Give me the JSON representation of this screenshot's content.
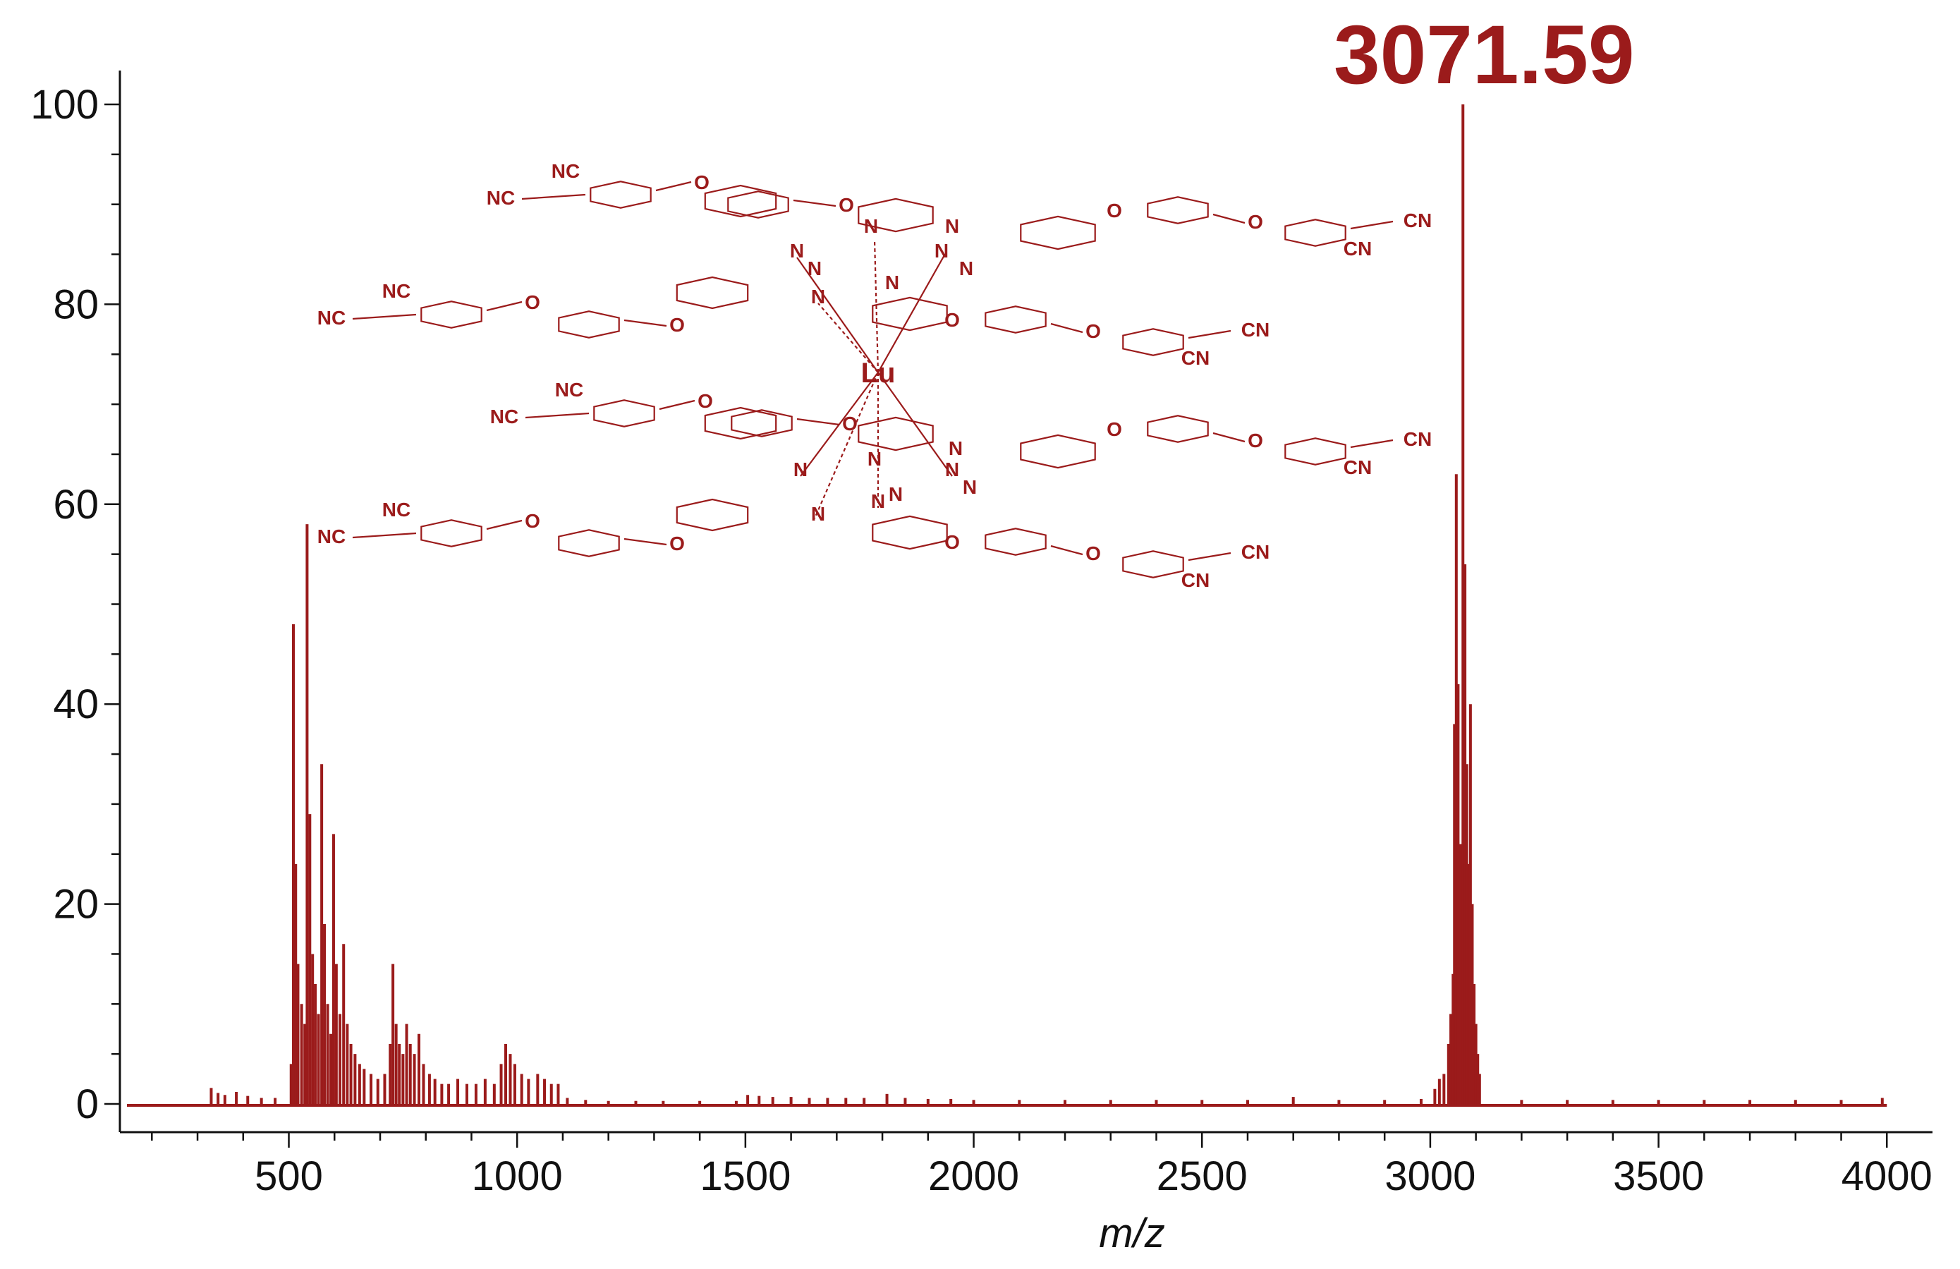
{
  "chart_data": {
    "type": "bar",
    "title": "",
    "xlabel": "m/z",
    "ylabel": "",
    "xlim": [
      130,
      4100
    ],
    "ylim": [
      0,
      100
    ],
    "xticks": [
      500,
      1000,
      1500,
      2000,
      2500,
      3000,
      3500,
      4000
    ],
    "ytick_values": [
      0,
      20,
      40,
      60,
      80,
      100
    ],
    "ytick_labels": [
      "0",
      "20",
      "40",
      "60",
      "80",
      "100"
    ],
    "grid": false,
    "color": "#9b1b1b",
    "annotation": {
      "text": "3071.59",
      "x": 3071.59,
      "y": 100
    },
    "peaks": [
      {
        "x": 330,
        "y": 1.6
      },
      {
        "x": 345,
        "y": 1.1
      },
      {
        "x": 360,
        "y": 0.9
      },
      {
        "x": 385,
        "y": 1.2
      },
      {
        "x": 410,
        "y": 0.8
      },
      {
        "x": 440,
        "y": 0.6
      },
      {
        "x": 470,
        "y": 0.6
      },
      {
        "x": 505,
        "y": 4
      },
      {
        "x": 510,
        "y": 48
      },
      {
        "x": 515,
        "y": 24
      },
      {
        "x": 520,
        "y": 14
      },
      {
        "x": 528,
        "y": 10
      },
      {
        "x": 535,
        "y": 8
      },
      {
        "x": 540,
        "y": 58
      },
      {
        "x": 546,
        "y": 29
      },
      {
        "x": 552,
        "y": 15
      },
      {
        "x": 558,
        "y": 12
      },
      {
        "x": 565,
        "y": 9
      },
      {
        "x": 572,
        "y": 34
      },
      {
        "x": 578,
        "y": 18
      },
      {
        "x": 585,
        "y": 10
      },
      {
        "x": 592,
        "y": 7
      },
      {
        "x": 598,
        "y": 27
      },
      {
        "x": 604,
        "y": 14
      },
      {
        "x": 612,
        "y": 9
      },
      {
        "x": 620,
        "y": 16
      },
      {
        "x": 628,
        "y": 8
      },
      {
        "x": 636,
        "y": 6
      },
      {
        "x": 645,
        "y": 5
      },
      {
        "x": 655,
        "y": 4
      },
      {
        "x": 665,
        "y": 3.5
      },
      {
        "x": 680,
        "y": 3
      },
      {
        "x": 695,
        "y": 2.5
      },
      {
        "x": 710,
        "y": 3
      },
      {
        "x": 722,
        "y": 6
      },
      {
        "x": 728,
        "y": 14
      },
      {
        "x": 735,
        "y": 8
      },
      {
        "x": 742,
        "y": 6
      },
      {
        "x": 750,
        "y": 5
      },
      {
        "x": 758,
        "y": 8
      },
      {
        "x": 766,
        "y": 6
      },
      {
        "x": 775,
        "y": 5
      },
      {
        "x": 785,
        "y": 7
      },
      {
        "x": 795,
        "y": 4
      },
      {
        "x": 808,
        "y": 3
      },
      {
        "x": 820,
        "y": 2.5
      },
      {
        "x": 835,
        "y": 2
      },
      {
        "x": 850,
        "y": 2
      },
      {
        "x": 870,
        "y": 2.5
      },
      {
        "x": 890,
        "y": 2
      },
      {
        "x": 910,
        "y": 2
      },
      {
        "x": 930,
        "y": 2.5
      },
      {
        "x": 950,
        "y": 2
      },
      {
        "x": 965,
        "y": 4
      },
      {
        "x": 975,
        "y": 6
      },
      {
        "x": 985,
        "y": 5
      },
      {
        "x": 995,
        "y": 4
      },
      {
        "x": 1010,
        "y": 3
      },
      {
        "x": 1025,
        "y": 2.5
      },
      {
        "x": 1045,
        "y": 3
      },
      {
        "x": 1060,
        "y": 2.5
      },
      {
        "x": 1075,
        "y": 2
      },
      {
        "x": 1090,
        "y": 2
      },
      {
        "x": 1110,
        "y": 0.6
      },
      {
        "x": 1150,
        "y": 0.4
      },
      {
        "x": 1200,
        "y": 0.3
      },
      {
        "x": 1260,
        "y": 0.3
      },
      {
        "x": 1320,
        "y": 0.3
      },
      {
        "x": 1400,
        "y": 0.3
      },
      {
        "x": 1480,
        "y": 0.3
      },
      {
        "x": 1505,
        "y": 0.9
      },
      {
        "x": 1530,
        "y": 0.8
      },
      {
        "x": 1560,
        "y": 0.7
      },
      {
        "x": 1600,
        "y": 0.7
      },
      {
        "x": 1640,
        "y": 0.6
      },
      {
        "x": 1680,
        "y": 0.6
      },
      {
        "x": 1720,
        "y": 0.6
      },
      {
        "x": 1760,
        "y": 0.6
      },
      {
        "x": 1810,
        "y": 1.0
      },
      {
        "x": 1850,
        "y": 0.6
      },
      {
        "x": 1900,
        "y": 0.5
      },
      {
        "x": 1950,
        "y": 0.5
      },
      {
        "x": 2000,
        "y": 0.4
      },
      {
        "x": 2100,
        "y": 0.4
      },
      {
        "x": 2200,
        "y": 0.4
      },
      {
        "x": 2300,
        "y": 0.4
      },
      {
        "x": 2400,
        "y": 0.4
      },
      {
        "x": 2500,
        "y": 0.4
      },
      {
        "x": 2600,
        "y": 0.4
      },
      {
        "x": 2700,
        "y": 0.7
      },
      {
        "x": 2800,
        "y": 0.4
      },
      {
        "x": 2900,
        "y": 0.4
      },
      {
        "x": 2980,
        "y": 0.5
      },
      {
        "x": 3010,
        "y": 1.5
      },
      {
        "x": 3020,
        "y": 2.5
      },
      {
        "x": 3030,
        "y": 3
      },
      {
        "x": 3040,
        "y": 6
      },
      {
        "x": 3045,
        "y": 9
      },
      {
        "x": 3050,
        "y": 13
      },
      {
        "x": 3053,
        "y": 38
      },
      {
        "x": 3057,
        "y": 63
      },
      {
        "x": 3061,
        "y": 42
      },
      {
        "x": 3066,
        "y": 26
      },
      {
        "x": 3071.59,
        "y": 100
      },
      {
        "x": 3076,
        "y": 54
      },
      {
        "x": 3080,
        "y": 34
      },
      {
        "x": 3084,
        "y": 24
      },
      {
        "x": 3088,
        "y": 40
      },
      {
        "x": 3092,
        "y": 20
      },
      {
        "x": 3096,
        "y": 12
      },
      {
        "x": 3100,
        "y": 8
      },
      {
        "x": 3104,
        "y": 5
      },
      {
        "x": 3108,
        "y": 3
      },
      {
        "x": 3200,
        "y": 0.4
      },
      {
        "x": 3300,
        "y": 0.4
      },
      {
        "x": 3400,
        "y": 0.4
      },
      {
        "x": 3500,
        "y": 0.4
      },
      {
        "x": 3600,
        "y": 0.4
      },
      {
        "x": 3700,
        "y": 0.4
      },
      {
        "x": 3800,
        "y": 0.4
      },
      {
        "x": 3900,
        "y": 0.4
      },
      {
        "x": 3990,
        "y": 0.6
      }
    ]
  },
  "structure": {
    "metal": "Lu",
    "nitrogen": "N",
    "oxygen": "O",
    "nitrile_left": "NC",
    "nitrile_right": "CN"
  }
}
